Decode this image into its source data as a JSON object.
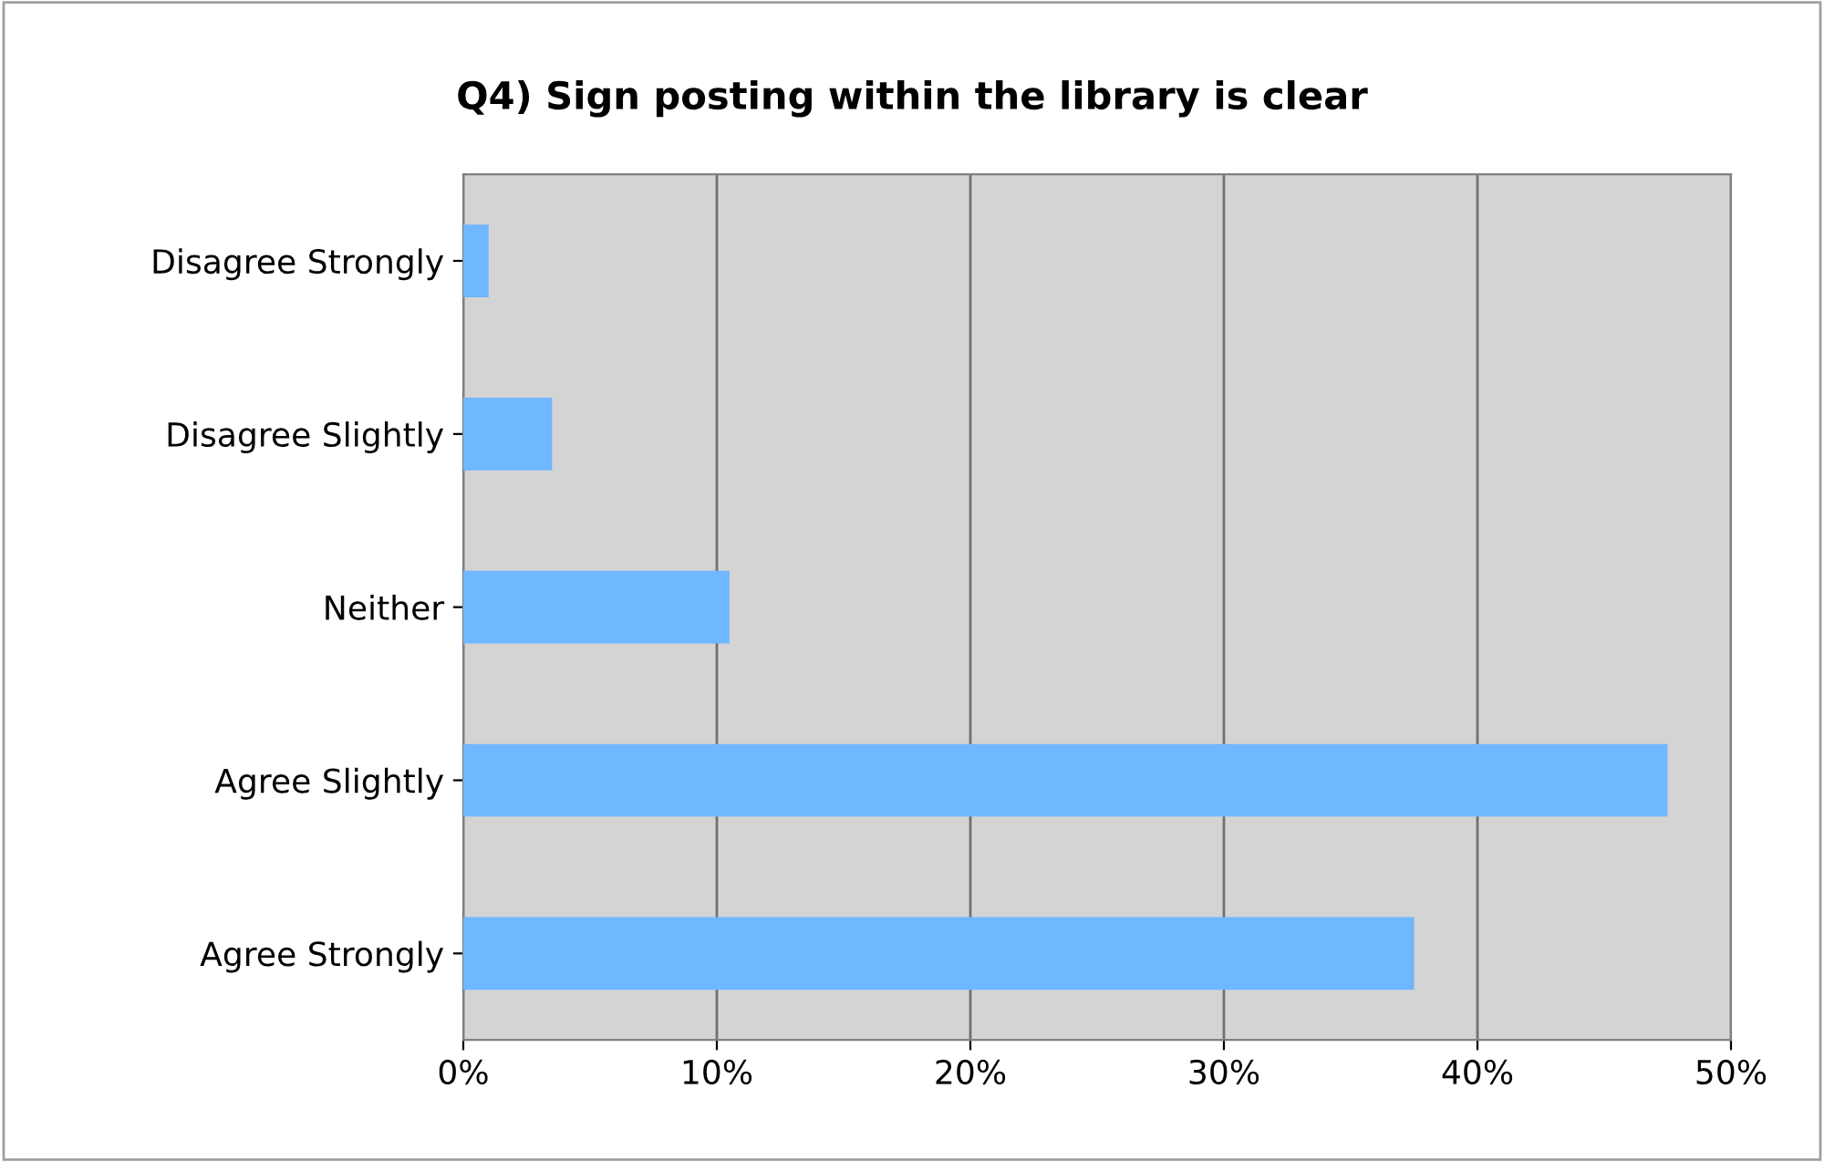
{
  "chart_data": {
    "type": "bar",
    "orientation": "horizontal",
    "title": "Q4) Sign posting within the library is clear",
    "categories": [
      "Disagree Strongly",
      "Disagree Slightly",
      "Neither",
      "Agree Slightly",
      "Agree Strongly"
    ],
    "values": [
      1.0,
      3.5,
      10.5,
      47.5,
      37.5
    ],
    "color": "#6fb7ff",
    "xlim": [
      0,
      50
    ],
    "xticks": [
      {
        "value": 0,
        "label": "0%"
      },
      {
        "value": 10,
        "label": "10%"
      },
      {
        "value": 20,
        "label": "20%"
      },
      {
        "value": 30,
        "label": "30%"
      },
      {
        "value": 40,
        "label": "40%"
      },
      {
        "value": 50,
        "label": "50%"
      }
    ],
    "grid": "x",
    "legend": false
  }
}
